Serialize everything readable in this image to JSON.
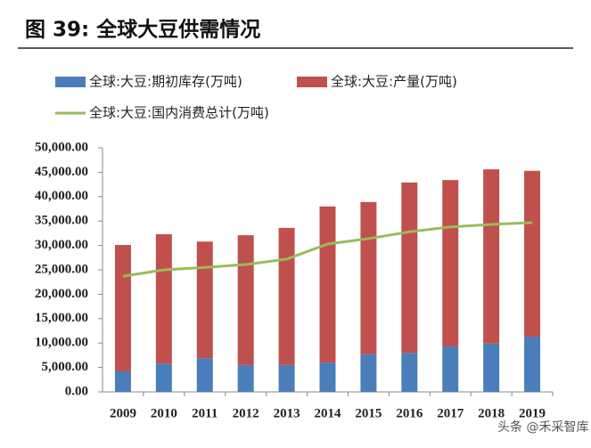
{
  "title": "图 39: 全球大豆供需情况",
  "watermark": "头条 @禾采智库",
  "chart_data": {
    "type": "bar",
    "stacked": true,
    "grid": false,
    "categories": [
      "2009",
      "2010",
      "2011",
      "2012",
      "2013",
      "2014",
      "2015",
      "2016",
      "2017",
      "2018",
      "2019"
    ],
    "series": [
      {
        "name": "全球:大豆:期初库存(万吨)",
        "color": "#4a7ebb",
        "values": [
          4200,
          5800,
          6900,
          5500,
          5500,
          6000,
          7700,
          8000,
          9300,
          9900,
          11300
        ]
      },
      {
        "name": "全球:大豆:产量(万吨)",
        "color": "#c0504d",
        "values": [
          25900,
          26500,
          23900,
          26600,
          28100,
          32000,
          31200,
          34900,
          34100,
          35700,
          34000
        ]
      },
      {
        "name": "全球:大豆:国内消费总计(万吨)",
        "color": "#9bbb59",
        "type": "line",
        "values": [
          23700,
          25000,
          25500,
          26100,
          27200,
          30300,
          31400,
          32800,
          33800,
          34300,
          34700
        ]
      }
    ],
    "ylim": [
      0,
      50000
    ],
    "yticks": [
      {
        "value": 0,
        "label": "0.00"
      },
      {
        "value": 5000,
        "label": "5,000.00"
      },
      {
        "value": 10000,
        "label": "10,000.00"
      },
      {
        "value": 15000,
        "label": "15,000.00"
      },
      {
        "value": 20000,
        "label": "20,000.00"
      },
      {
        "value": 25000,
        "label": "25,000.00"
      },
      {
        "value": 30000,
        "label": "30,000.00"
      },
      {
        "value": 35000,
        "label": "35,000.00"
      },
      {
        "value": 40000,
        "label": "40,000.00"
      },
      {
        "value": 45000,
        "label": "45,000.00"
      },
      {
        "value": 50000,
        "label": "50,000.00"
      }
    ]
  }
}
